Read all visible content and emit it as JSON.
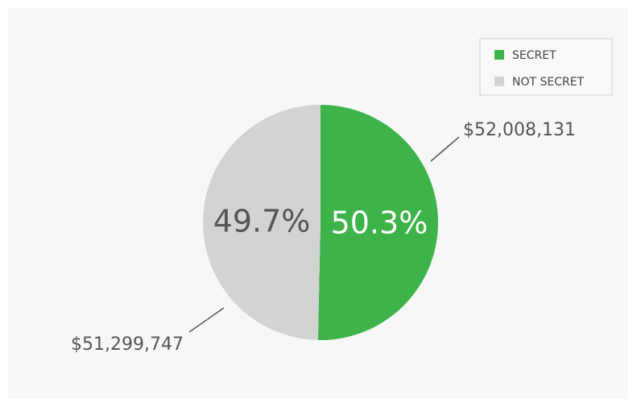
{
  "chart_data": {
    "type": "pie",
    "categories": [
      "SECRET",
      "NOT SECRET"
    ],
    "values": [
      52008131,
      51299747
    ],
    "value_labels": [
      "$52,008,131",
      "$51,299,747"
    ],
    "percent_labels": [
      "50.3%",
      "49.7%"
    ],
    "colors": [
      "#3db34a",
      "#d3d3d3"
    ],
    "legend": "top-right"
  }
}
